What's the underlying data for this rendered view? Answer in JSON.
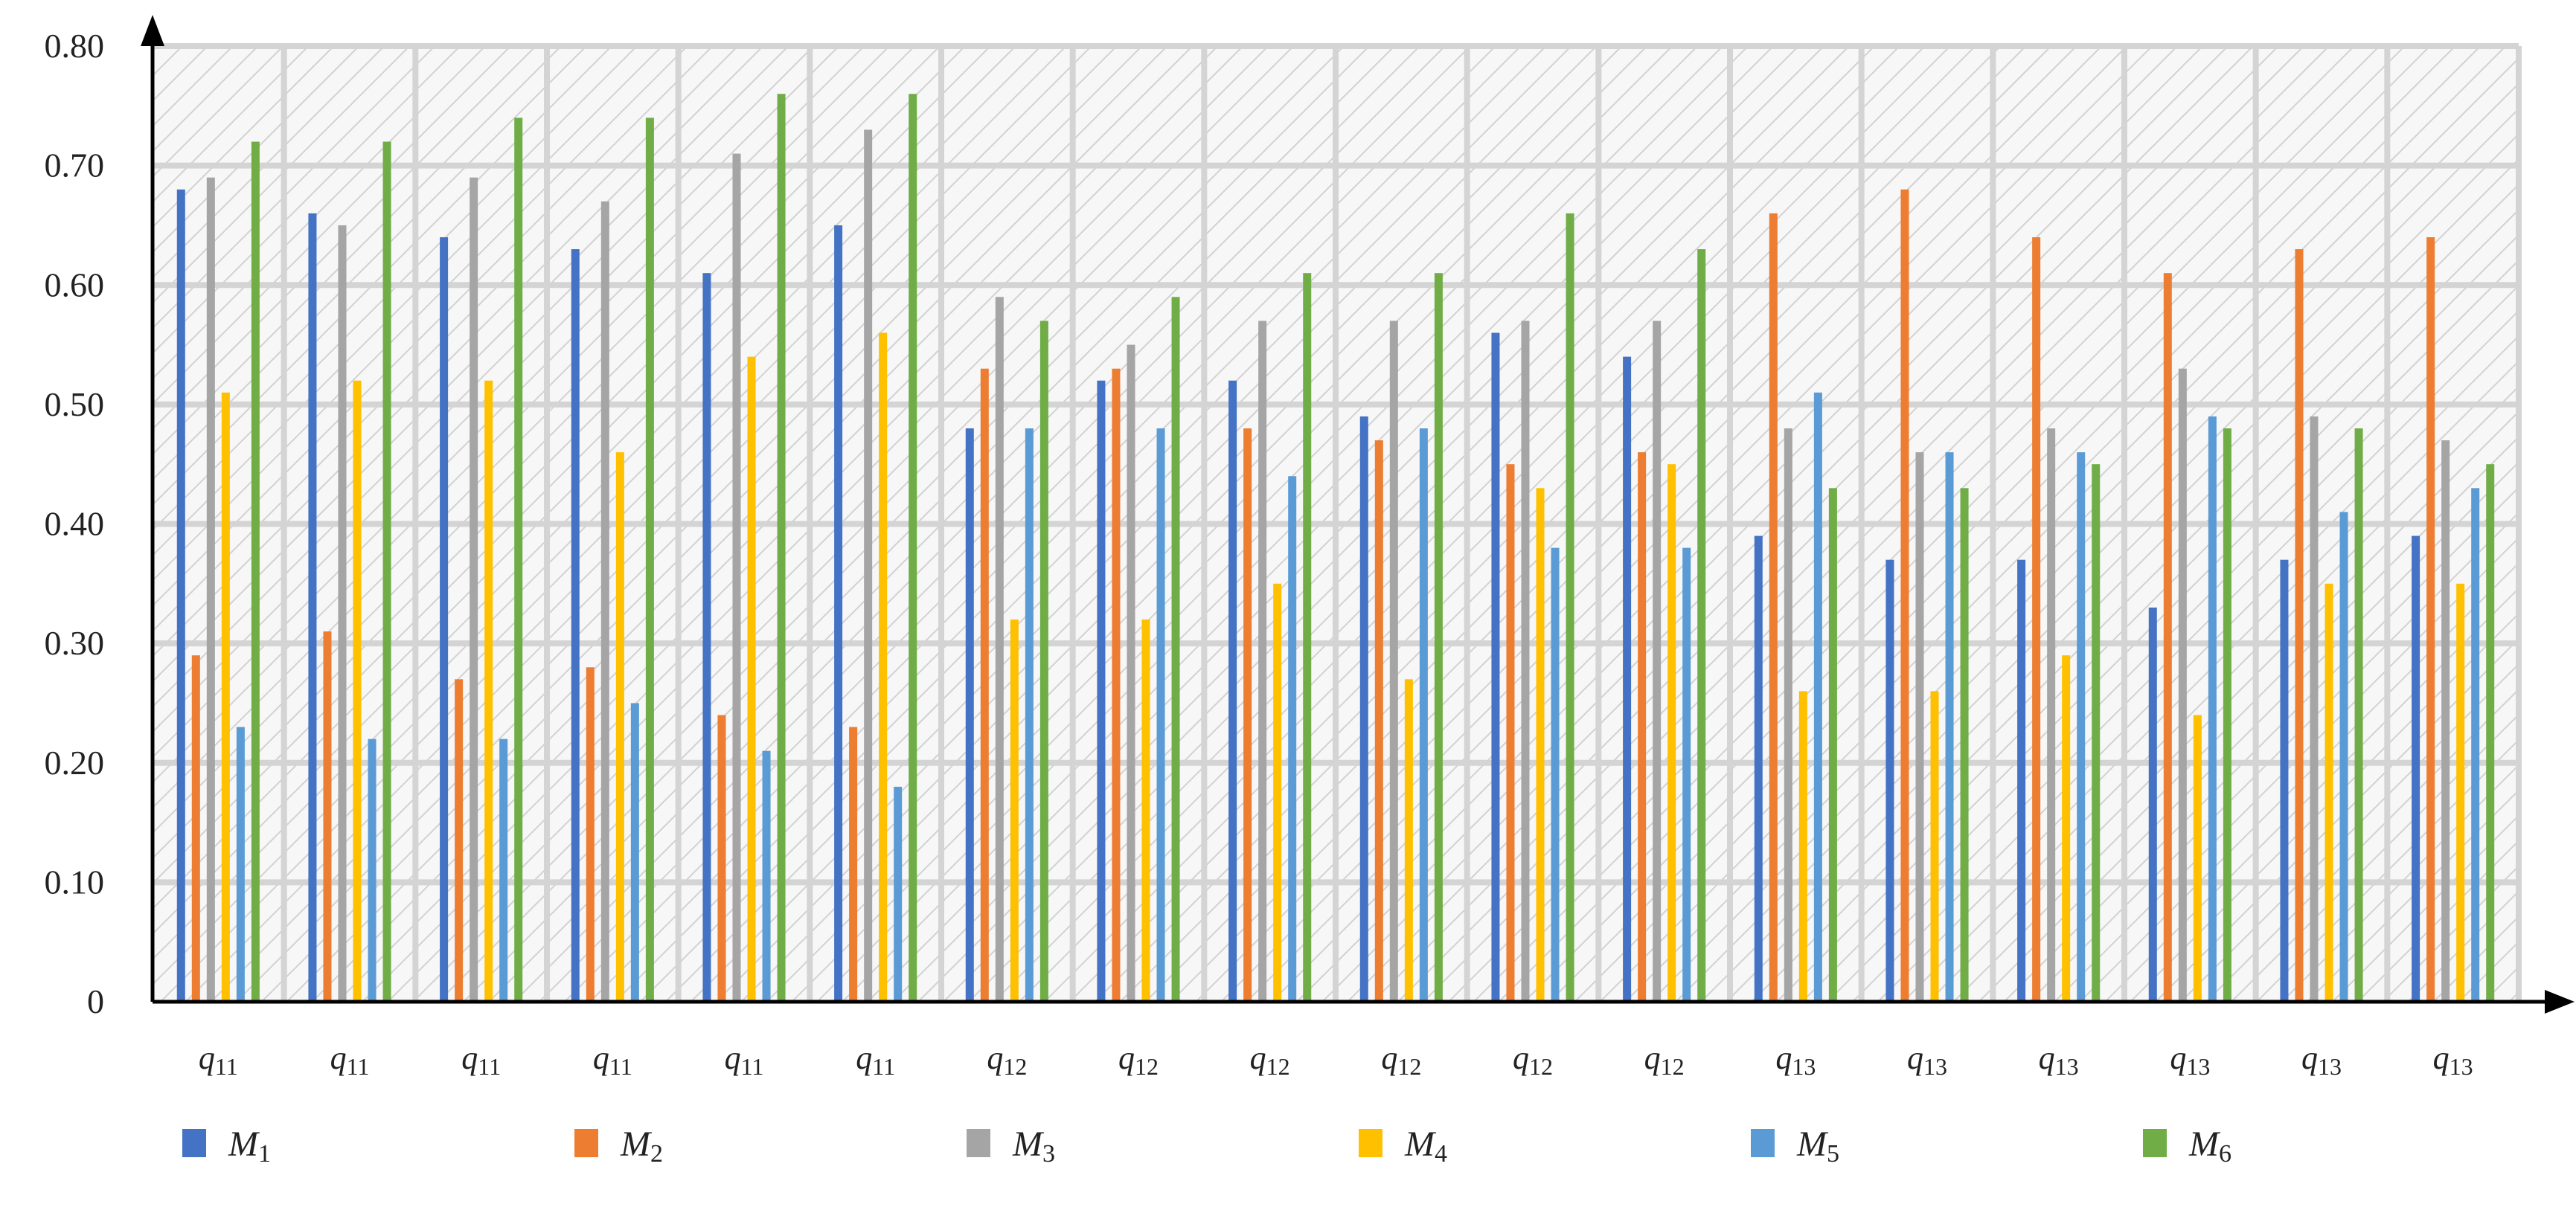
{
  "chart_data": {
    "type": "bar",
    "title": "",
    "xlabel": "",
    "ylabel": "",
    "ylim": [
      0,
      0.8
    ],
    "yticks": [
      "0",
      "0.10",
      "0.20",
      "0.30",
      "0.40",
      "0.50",
      "0.60",
      "0.70",
      "0.80"
    ],
    "grid": true,
    "legend_position": "bottom",
    "categories": [
      {
        "base": "q",
        "sub": "11"
      },
      {
        "base": "q",
        "sub": "11"
      },
      {
        "base": "q",
        "sub": "11"
      },
      {
        "base": "q",
        "sub": "11"
      },
      {
        "base": "q",
        "sub": "11"
      },
      {
        "base": "q",
        "sub": "11"
      },
      {
        "base": "q",
        "sub": "12"
      },
      {
        "base": "q",
        "sub": "12"
      },
      {
        "base": "q",
        "sub": "12"
      },
      {
        "base": "q",
        "sub": "12"
      },
      {
        "base": "q",
        "sub": "12"
      },
      {
        "base": "q",
        "sub": "12"
      },
      {
        "base": "q",
        "sub": "13"
      },
      {
        "base": "q",
        "sub": "13"
      },
      {
        "base": "q",
        "sub": "13"
      },
      {
        "base": "q",
        "sub": "13"
      },
      {
        "base": "q",
        "sub": "13"
      },
      {
        "base": "q",
        "sub": "13"
      }
    ],
    "series": [
      {
        "name": "M",
        "sub": "1",
        "color": "#4472C4",
        "values": [
          0.68,
          0.66,
          0.64,
          0.63,
          0.61,
          0.65,
          0.48,
          0.52,
          0.52,
          0.49,
          0.56,
          0.54,
          0.39,
          0.37,
          0.37,
          0.33,
          0.37,
          0.39
        ]
      },
      {
        "name": "M",
        "sub": "2",
        "color": "#ED7D31",
        "values": [
          0.29,
          0.31,
          0.27,
          0.28,
          0.24,
          0.23,
          0.53,
          0.53,
          0.48,
          0.47,
          0.45,
          0.46,
          0.66,
          0.68,
          0.64,
          0.61,
          0.63,
          0.64
        ]
      },
      {
        "name": "M",
        "sub": "3",
        "color": "#A5A5A5",
        "values": [
          0.69,
          0.65,
          0.69,
          0.67,
          0.71,
          0.73,
          0.59,
          0.55,
          0.57,
          0.57,
          0.57,
          0.57,
          0.48,
          0.46,
          0.48,
          0.53,
          0.49,
          0.47
        ]
      },
      {
        "name": "M",
        "sub": "4",
        "color": "#FFC000",
        "values": [
          0.51,
          0.52,
          0.52,
          0.46,
          0.54,
          0.56,
          0.32,
          0.32,
          0.35,
          0.27,
          0.43,
          0.45,
          0.26,
          0.26,
          0.29,
          0.24,
          0.35,
          0.35
        ]
      },
      {
        "name": "M",
        "sub": "5",
        "color": "#5B9BD5",
        "values": [
          0.23,
          0.22,
          0.22,
          0.25,
          0.21,
          0.18,
          0.48,
          0.48,
          0.44,
          0.48,
          0.38,
          0.38,
          0.51,
          0.46,
          0.46,
          0.49,
          0.41,
          0.43
        ]
      },
      {
        "name": "M",
        "sub": "6",
        "color": "#70AD47",
        "values": [
          0.72,
          0.72,
          0.74,
          0.74,
          0.76,
          0.76,
          0.57,
          0.59,
          0.61,
          0.61,
          0.66,
          0.63,
          0.43,
          0.43,
          0.45,
          0.48,
          0.48,
          0.45
        ]
      }
    ]
  }
}
